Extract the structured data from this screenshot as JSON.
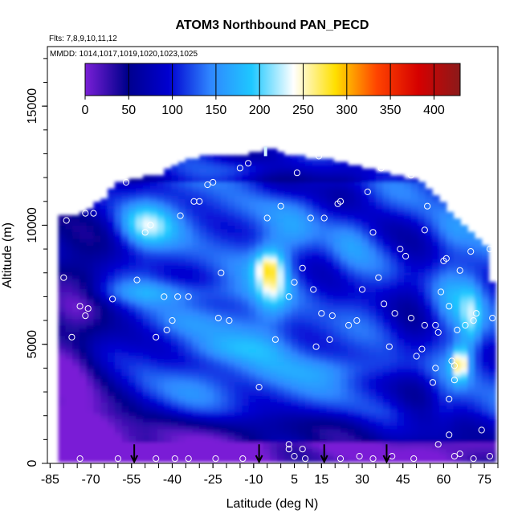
{
  "chart_data": {
    "type": "heatmap",
    "title": "ATOM3 Northbound PAN_PECD",
    "subtitle_flights": "Flts: 7,8,9,10,11,12",
    "subtitle_dates": "MMDD: 1014,1017,1019,1020,1023,1025",
    "xlabel": "Latitude (deg N)",
    "ylabel": "Altitude (m)",
    "xlim": [
      -86,
      80
    ],
    "ylim": [
      0,
      17500
    ],
    "x_ticks": [
      -85,
      -70,
      -55,
      -40,
      -25,
      -10,
      5,
      15,
      30,
      45,
      60,
      75
    ],
    "y_ticks": [
      0,
      5000,
      10000,
      15000
    ],
    "colorbar": {
      "range": [
        0,
        430
      ],
      "ticks": [
        0,
        50,
        100,
        150,
        200,
        250,
        300,
        350,
        400
      ],
      "colors": [
        "#7a1fd6",
        "#00008c",
        "#0000d0",
        "#2f86ff",
        "#1ec8ff",
        "#ffffff",
        "#ffe000",
        "#ff4400",
        "#d50000",
        "#8b1a1a"
      ]
    },
    "arrows_latitude": [
      -54,
      -8,
      16,
      39
    ],
    "envelope": [
      [
        -79,
        200,
        10300
      ],
      [
        -73,
        200,
        10500
      ],
      [
        -67,
        200,
        10900
      ],
      [
        -60,
        200,
        11700
      ],
      [
        -52,
        200,
        11900
      ],
      [
        -44,
        200,
        12100
      ],
      [
        -38,
        200,
        12500
      ],
      [
        -33,
        200,
        12700
      ],
      [
        -27,
        200,
        12900
      ],
      [
        -20,
        200,
        12900
      ],
      [
        -12,
        200,
        12900
      ],
      [
        -5,
        200,
        13200
      ],
      [
        3,
        200,
        12900
      ],
      [
        10,
        200,
        12800
      ],
      [
        18,
        200,
        12700
      ],
      [
        25,
        200,
        12500
      ],
      [
        32,
        200,
        12300
      ],
      [
        40,
        200,
        12100
      ],
      [
        47,
        200,
        11900
      ],
      [
        53,
        200,
        11700
      ],
      [
        59,
        200,
        11000
      ],
      [
        65,
        200,
        10200
      ],
      [
        71,
        200,
        9500
      ],
      [
        76,
        200,
        9000
      ],
      [
        78,
        200,
        7500
      ]
    ],
    "hotspots": [
      [
        -81,
        500,
        14,
        1500,
        -90
      ],
      [
        -72,
        1500,
        14,
        2500,
        -70
      ],
      [
        -45,
        800,
        40,
        1500,
        -40
      ],
      [
        -78,
        4000,
        10,
        2500,
        -30
      ],
      [
        -73,
        7500,
        10,
        2500,
        -30
      ],
      [
        -35,
        1000,
        18,
        1800,
        -30
      ],
      [
        -55,
        5500,
        14,
        2500,
        -20
      ],
      [
        -50,
        10000,
        10,
        900,
        90
      ],
      [
        -45,
        7200,
        30,
        500,
        40
      ],
      [
        -38,
        5800,
        12,
        800,
        30
      ],
      [
        -20,
        10700,
        12,
        900,
        20
      ],
      [
        -20,
        4800,
        20,
        500,
        20
      ],
      [
        -3,
        7800,
        6,
        1400,
        100
      ],
      [
        -5,
        8300,
        5,
        600,
        60
      ],
      [
        -35,
        3000,
        30,
        1000,
        20
      ],
      [
        -5,
        5000,
        12,
        2000,
        40
      ],
      [
        5,
        1500,
        30,
        900,
        -40
      ],
      [
        0,
        11700,
        12,
        700,
        -40
      ],
      [
        -12,
        12400,
        14,
        400,
        40
      ],
      [
        25,
        11500,
        10,
        1000,
        -30
      ],
      [
        40,
        9700,
        10,
        1200,
        -30
      ],
      [
        20,
        7000,
        10,
        1800,
        -30
      ],
      [
        25,
        9000,
        8,
        1500,
        30
      ],
      [
        5,
        9500,
        8,
        1000,
        30
      ],
      [
        28,
        4000,
        25,
        600,
        30
      ],
      [
        50,
        3000,
        10,
        2500,
        -50
      ],
      [
        48,
        7500,
        8,
        2500,
        -30
      ],
      [
        63,
        7000,
        6,
        2500,
        30
      ],
      [
        66,
        4200,
        3,
        700,
        140
      ],
      [
        70,
        6000,
        4,
        1500,
        80
      ],
      [
        60,
        2500,
        5,
        1000,
        20
      ],
      [
        62,
        9800,
        8,
        900,
        20
      ],
      [
        60,
        400,
        14,
        800,
        -20
      ]
    ],
    "markers": [
      [
        -79,
        10200
      ],
      [
        -80,
        7800
      ],
      [
        -77,
        5300
      ],
      [
        -74,
        6600
      ],
      [
        -72,
        6200
      ],
      [
        -71,
        6500
      ],
      [
        -72,
        10500
      ],
      [
        -69,
        10500
      ],
      [
        -62,
        6900
      ],
      [
        -57,
        11800
      ],
      [
        -53,
        7700
      ],
      [
        -50,
        9700
      ],
      [
        -48,
        10000
      ],
      [
        -46,
        5300
      ],
      [
        -43,
        7000
      ],
      [
        -40,
        6000
      ],
      [
        -42,
        5600
      ],
      [
        -38,
        7000
      ],
      [
        -37,
        10400
      ],
      [
        -34,
        7000
      ],
      [
        -32,
        11000
      ],
      [
        -30,
        11000
      ],
      [
        -27,
        11700
      ],
      [
        -25,
        11800
      ],
      [
        -23,
        6100
      ],
      [
        -22,
        8000
      ],
      [
        -19,
        6000
      ],
      [
        -15,
        12400
      ],
      [
        -12,
        12600
      ],
      [
        -8,
        3200
      ],
      [
        -5,
        10300
      ],
      [
        -2,
        5200
      ],
      [
        0,
        10800
      ],
      [
        3,
        7000
      ],
      [
        5,
        7600
      ],
      [
        6,
        12200
      ],
      [
        8,
        8200
      ],
      [
        11,
        10300
      ],
      [
        12,
        7300
      ],
      [
        13,
        4900
      ],
      [
        14,
        12900
      ],
      [
        15,
        6300
      ],
      [
        16,
        10300
      ],
      [
        18,
        5200
      ],
      [
        19,
        6200
      ],
      [
        21,
        10900
      ],
      [
        22,
        11000
      ],
      [
        25,
        5800
      ],
      [
        28,
        6000
      ],
      [
        30,
        7300
      ],
      [
        32,
        11400
      ],
      [
        34,
        9700
      ],
      [
        36,
        7800
      ],
      [
        37,
        12400
      ],
      [
        38,
        6700
      ],
      [
        40,
        4900
      ],
      [
        42,
        6300
      ],
      [
        44,
        9000
      ],
      [
        46,
        8700
      ],
      [
        48,
        12100
      ],
      [
        48,
        6100
      ],
      [
        50,
        4500
      ],
      [
        52,
        4800
      ],
      [
        53,
        5800
      ],
      [
        53,
        9800
      ],
      [
        54,
        10800
      ],
      [
        56,
        3400
      ],
      [
        57,
        5800
      ],
      [
        57,
        4000
      ],
      [
        58,
        5500
      ],
      [
        59,
        7200
      ],
      [
        60,
        8500
      ],
      [
        61,
        8600
      ],
      [
        62,
        6600
      ],
      [
        62,
        2700
      ],
      [
        63,
        4300
      ],
      [
        64,
        3500
      ],
      [
        64,
        4100
      ],
      [
        65,
        5600
      ],
      [
        66,
        8100
      ],
      [
        68,
        5800
      ],
      [
        70,
        8900
      ],
      [
        71,
        6000
      ],
      [
        72,
        6300
      ],
      [
        74,
        1400
      ],
      [
        77,
        9000
      ],
      [
        78,
        6100
      ],
      [
        3,
        800
      ],
      [
        3,
        600
      ],
      [
        5,
        300
      ],
      [
        8,
        600
      ],
      [
        9,
        200
      ],
      [
        -46,
        200
      ],
      [
        -39,
        200
      ],
      [
        -34,
        200
      ],
      [
        -24,
        200
      ],
      [
        -14,
        200
      ],
      [
        22,
        200
      ],
      [
        29,
        300
      ],
      [
        34,
        200
      ],
      [
        41,
        300
      ],
      [
        49,
        200
      ],
      [
        58,
        800
      ],
      [
        62,
        1200
      ],
      [
        64,
        300
      ],
      [
        66,
        400
      ],
      [
        71,
        200
      ],
      [
        77,
        300
      ],
      [
        -60,
        200
      ],
      [
        -74,
        200
      ]
    ]
  }
}
